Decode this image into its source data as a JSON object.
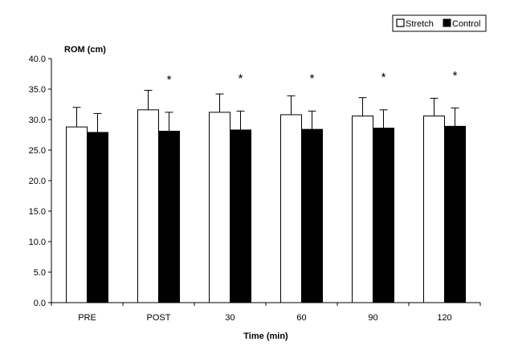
{
  "chart_data": {
    "type": "bar",
    "title": "",
    "ylabel": "ROM (cm)",
    "xlabel": "Time (min)",
    "categories": [
      "PRE",
      "POST",
      "30",
      "60",
      "90",
      "120"
    ],
    "ylim": [
      0,
      40
    ],
    "yticks": [
      0,
      5,
      10,
      15,
      20,
      25,
      30,
      35,
      40
    ],
    "ytick_labels": [
      "0.0",
      "5.0",
      "10.0",
      "15.0",
      "20.0",
      "25.0",
      "30.0",
      "35.0",
      "40.0"
    ],
    "series": [
      {
        "name": "Stretch",
        "color": "#ffffff",
        "values": [
          28.8,
          31.6,
          31.2,
          30.8,
          30.6,
          30.6
        ],
        "error": [
          3.2,
          3.2,
          3.0,
          3.1,
          3.0,
          2.9
        ]
      },
      {
        "name": "Control",
        "color": "#000000",
        "values": [
          27.9,
          28.1,
          28.3,
          28.4,
          28.6,
          28.9
        ],
        "error": [
          3.1,
          3.1,
          3.1,
          3.0,
          3.0,
          3.0
        ]
      }
    ],
    "annotations": [
      {
        "category": "POST",
        "text": "*"
      },
      {
        "category": "30",
        "text": "*"
      },
      {
        "category": "60",
        "text": "*"
      },
      {
        "category": "90",
        "text": "*"
      },
      {
        "category": "120",
        "text": "*"
      }
    ],
    "legend_position": "top-right",
    "grid": false
  }
}
